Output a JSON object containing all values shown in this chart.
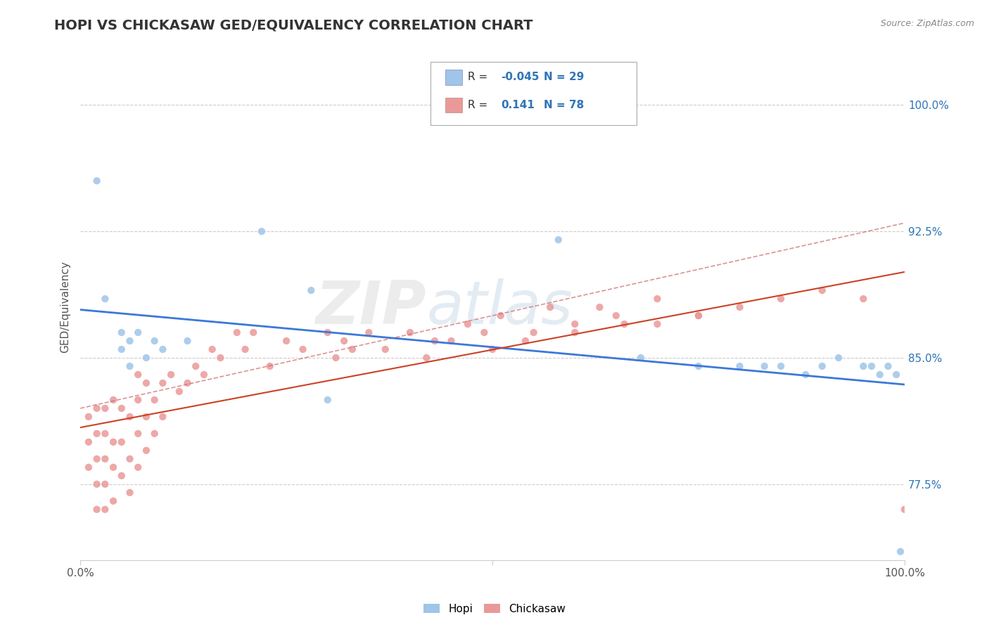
{
  "title": "HOPI VS CHICKASAW GED/EQUIVALENCY CORRELATION CHART",
  "source": "Source: ZipAtlas.com",
  "ylabel": "GED/Equivalency",
  "yticks": [
    77.5,
    85.0,
    92.5,
    100.0
  ],
  "xlim": [
    0.0,
    1.0
  ],
  "ylim": [
    73.0,
    103.0
  ],
  "hopi_R": -0.045,
  "hopi_N": 29,
  "chickasaw_R": 0.141,
  "chickasaw_N": 78,
  "hopi_color": "#9fc5e8",
  "chickasaw_color": "#ea9999",
  "hopi_line_color": "#3c78d8",
  "chickasaw_line_color": "#cc4125",
  "hopi_line_dash": "#ea9999",
  "background_color": "#ffffff",
  "watermark": "ZIPatlas",
  "hopi_x": [
    0.02,
    0.03,
    0.05,
    0.05,
    0.06,
    0.06,
    0.07,
    0.08,
    0.09,
    0.1,
    0.13,
    0.22,
    0.28,
    0.3,
    0.58,
    0.68,
    0.75,
    0.8,
    0.83,
    0.85,
    0.88,
    0.9,
    0.92,
    0.95,
    0.96,
    0.97,
    0.98,
    0.99,
    0.995
  ],
  "hopi_y": [
    95.5,
    88.5,
    86.5,
    85.5,
    84.5,
    86.0,
    86.5,
    85.0,
    86.0,
    85.5,
    86.0,
    92.5,
    89.0,
    82.5,
    92.0,
    85.0,
    84.5,
    84.5,
    84.5,
    84.5,
    84.0,
    84.5,
    85.0,
    84.5,
    84.5,
    84.0,
    84.5,
    84.0,
    73.5
  ],
  "chickasaw_x": [
    0.01,
    0.01,
    0.01,
    0.02,
    0.02,
    0.02,
    0.02,
    0.02,
    0.03,
    0.03,
    0.03,
    0.03,
    0.03,
    0.04,
    0.04,
    0.04,
    0.04,
    0.05,
    0.05,
    0.05,
    0.06,
    0.06,
    0.06,
    0.07,
    0.07,
    0.07,
    0.07,
    0.08,
    0.08,
    0.08,
    0.09,
    0.09,
    0.1,
    0.1,
    0.11,
    0.12,
    0.13,
    0.14,
    0.15,
    0.16,
    0.17,
    0.19,
    0.2,
    0.21,
    0.23,
    0.25,
    0.27,
    0.3,
    0.31,
    0.32,
    0.33,
    0.35,
    0.37,
    0.4,
    0.42,
    0.43,
    0.45,
    0.47,
    0.49,
    0.51,
    0.54,
    0.57,
    0.6,
    0.63,
    0.66,
    0.7,
    0.75,
    0.8,
    0.85,
    0.9,
    0.95,
    1.0,
    0.5,
    0.55,
    0.6,
    0.65,
    0.7,
    0.75
  ],
  "chickasaw_y": [
    78.5,
    80.0,
    81.5,
    76.0,
    77.5,
    79.0,
    80.5,
    82.0,
    76.0,
    77.5,
    79.0,
    80.5,
    82.0,
    76.5,
    78.5,
    80.0,
    82.5,
    78.0,
    80.0,
    82.0,
    77.0,
    79.0,
    81.5,
    78.5,
    80.5,
    82.5,
    84.0,
    79.5,
    81.5,
    83.5,
    80.5,
    82.5,
    81.5,
    83.5,
    84.0,
    83.0,
    83.5,
    84.5,
    84.0,
    85.5,
    85.0,
    86.5,
    85.5,
    86.5,
    84.5,
    86.0,
    85.5,
    86.5,
    85.0,
    86.0,
    85.5,
    86.5,
    85.5,
    86.5,
    85.0,
    86.0,
    86.0,
    87.0,
    86.5,
    87.5,
    86.0,
    88.0,
    86.5,
    88.0,
    87.0,
    88.5,
    87.5,
    88.0,
    88.5,
    89.0,
    88.5,
    76.0,
    85.5,
    86.5,
    87.0,
    87.5,
    87.0,
    87.5
  ],
  "title_fontsize": 14,
  "label_fontsize": 11,
  "tick_fontsize": 11
}
